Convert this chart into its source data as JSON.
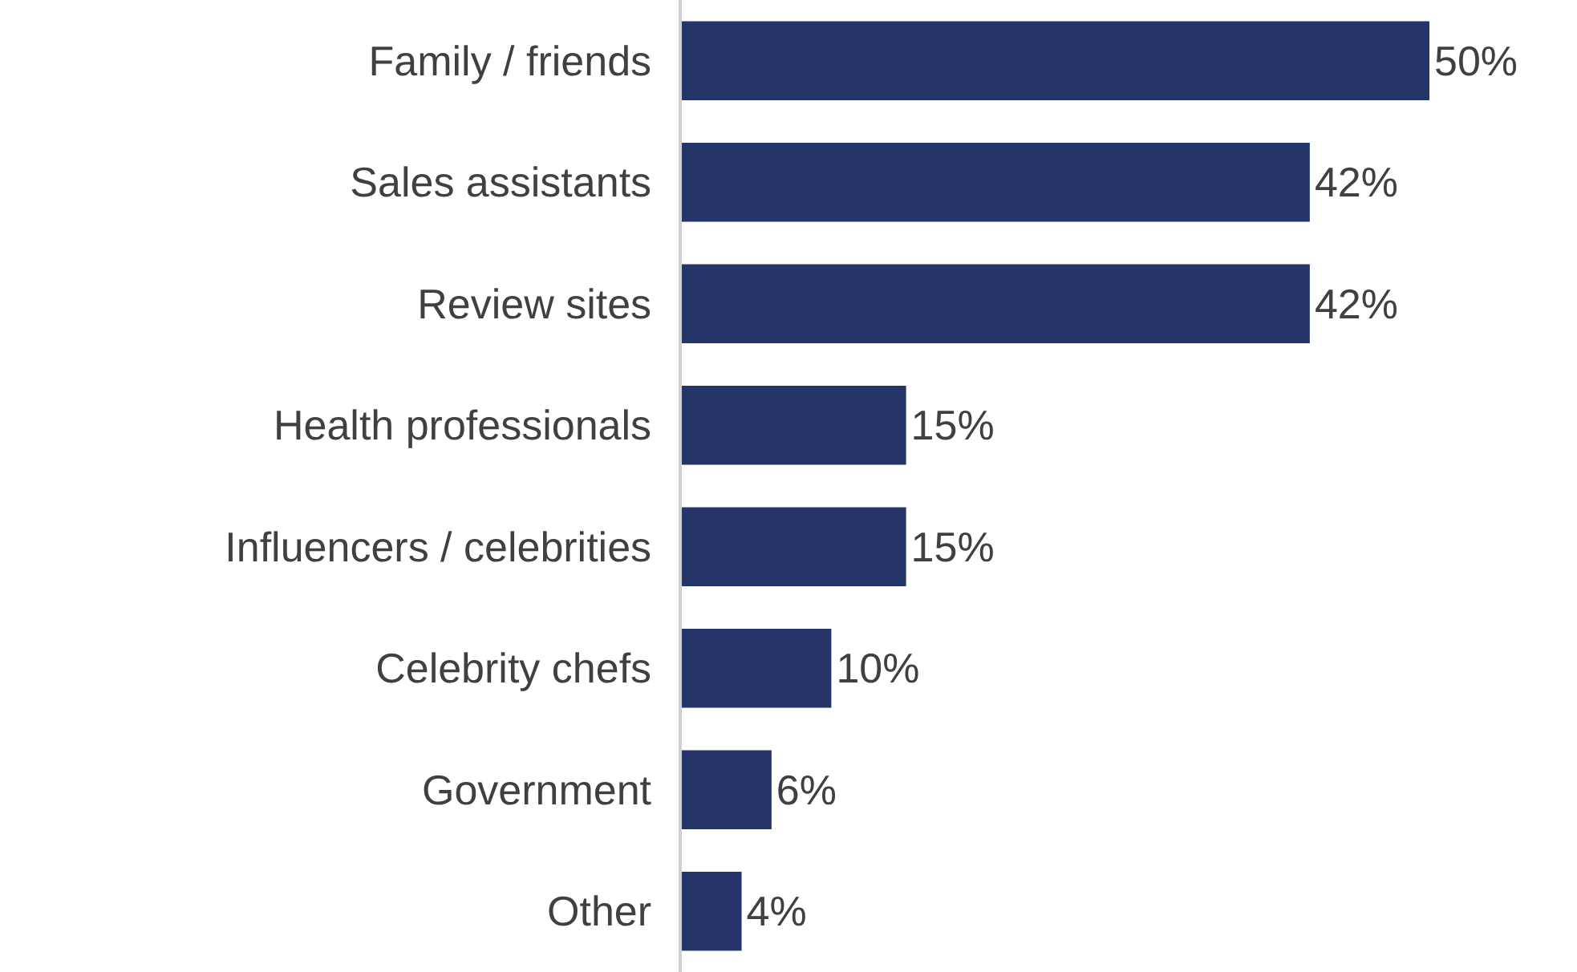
{
  "chart_data": {
    "type": "bar",
    "orientation": "horizontal",
    "categories": [
      "Family / friends",
      "Sales assistants",
      "Review sites",
      "Health professionals",
      "Influencers / celebrities",
      "Celebrity chefs",
      "Government",
      "Other"
    ],
    "values": [
      50,
      42,
      42,
      15,
      15,
      10,
      6,
      4
    ],
    "value_labels": [
      "50%",
      "42%",
      "42%",
      "15%",
      "15%",
      "10%",
      "6%",
      "4%"
    ],
    "color": "#253569",
    "legend": false
  }
}
